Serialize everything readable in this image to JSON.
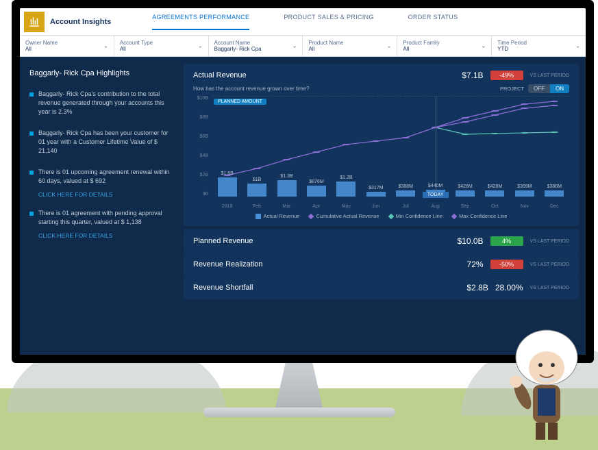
{
  "app": {
    "title": "Account Insights"
  },
  "tabs": [
    {
      "label": "AGREEMENTS PERFORMANCE",
      "active": true
    },
    {
      "label": "PRODUCT SALES & PRICING",
      "active": false
    },
    {
      "label": "ORDER STATUS",
      "active": false
    }
  ],
  "filters": [
    {
      "label": "Owner Name",
      "value": "All"
    },
    {
      "label": "Account Type",
      "value": "All"
    },
    {
      "label": "Account Name",
      "value": "Baggarly- Rick Cpa"
    },
    {
      "label": "Product Name",
      "value": "All"
    },
    {
      "label": "Product Family",
      "value": "All"
    },
    {
      "label": "Time Period",
      "value": "YTD"
    }
  ],
  "highlights": {
    "title": "Baggarly- Rick Cpa Highlights",
    "items": [
      {
        "text": "Baggarly- Rick Cpa's contribution to the total revenue generated through your accounts this year is 2.3%"
      },
      {
        "text": "Baggarly- Rick Cpa has been your customer for 01 year with a Customer Lifetime Value of $ 21,140"
      },
      {
        "text": "There is 01 upcoming agreement renewal within 60 days, valued at $ 692",
        "link": "CLICK HERE FOR DETAILS"
      },
      {
        "text": "There is 01 agreement with pending approval starting this quarter, valued at $ 1,138",
        "link": "CLICK HERE FOR DETAILS"
      }
    ]
  },
  "actual_revenue": {
    "title": "Actual Revenue",
    "value": "$7.1B",
    "delta": "-49%",
    "delta_color": "red",
    "vs_label": "VS LAST PERIOD",
    "subtitle": "How has the account revenue grown over time?",
    "project_label": "PROJECT",
    "toggle_off": "OFF",
    "toggle_on": "ON",
    "planned_tag": "PLANNED AMOUNT",
    "today_tag": "TODAY",
    "yticks": [
      "$10B",
      "$8B",
      "$6B",
      "$4B",
      "$2B",
      "$0"
    ],
    "xlabels": [
      "2019",
      "Feb",
      "Mar",
      "Apr",
      "May",
      "Jun",
      "Jul",
      "Aug",
      "Sep",
      "Oct",
      "Nov",
      "Dec"
    ],
    "bars": [
      {
        "label": "$1.6B",
        "h": 19
      },
      {
        "label": "$1B",
        "h": 13
      },
      {
        "label": "$1.3B",
        "h": 16
      },
      {
        "label": "$876M",
        "h": 11
      },
      {
        "label": "$1.2B",
        "h": 15
      },
      {
        "label": "$317M",
        "h": 5
      },
      {
        "label": "$388M",
        "h": 6
      },
      {
        "label": "$440M",
        "h": 7
      },
      {
        "label": "$426M",
        "h": 6
      },
      {
        "label": "$428M",
        "h": 6
      },
      {
        "label": "$399M",
        "h": 6
      },
      {
        "label": "$386M",
        "h": 6
      }
    ],
    "cumulative_color": "#8c6fd8",
    "min_conf_color": "#59c3b5",
    "max_conf_color": "#8c6fd8",
    "bar_color": "#4a90d9",
    "legend": [
      {
        "label": "Actual Revenue",
        "color": "#4a90d9",
        "shape": "square"
      },
      {
        "label": "Cumulative Actual Revenue",
        "color": "#8c6fd8",
        "shape": "diamond"
      },
      {
        "label": "Min Confidence Line",
        "color": "#59c3b5",
        "shape": "diamond"
      },
      {
        "label": "Max Confidence Line",
        "color": "#8c6fd8",
        "shape": "diamond"
      }
    ],
    "cumulative_points": [
      [
        0,
        116
      ],
      [
        1,
        106
      ],
      [
        2,
        93
      ],
      [
        3,
        82
      ],
      [
        4,
        71
      ],
      [
        5,
        66
      ],
      [
        6,
        61
      ],
      [
        7,
        46
      ],
      [
        8,
        38
      ],
      [
        9,
        28
      ],
      [
        10,
        18
      ],
      [
        11,
        14
      ]
    ],
    "min_conf_points": [
      [
        7,
        46
      ],
      [
        8,
        56
      ],
      [
        9,
        55
      ],
      [
        10,
        54
      ],
      [
        11,
        53
      ]
    ],
    "max_conf_points": [
      [
        7,
        46
      ],
      [
        8,
        32
      ],
      [
        9,
        22
      ],
      [
        10,
        12
      ],
      [
        11,
        8
      ]
    ],
    "today_index": 7
  },
  "rows": [
    {
      "title": "Planned Revenue",
      "value": "$10.0B",
      "delta": "4%",
      "delta_color": "green",
      "vs": "VS LAST PERIOD"
    },
    {
      "title": "Revenue Realization",
      "value": "72%",
      "delta": "-50%",
      "delta_color": "red",
      "vs": "VS LAST PERIOD"
    },
    {
      "title": "Revenue Shortfall",
      "value": "$2.8B",
      "pct": "28.00%",
      "vs": "VS LAST PERIOD"
    }
  ],
  "colors": {
    "dash_bg": "#0f2a4a",
    "panel_bg": "#12335b"
  }
}
